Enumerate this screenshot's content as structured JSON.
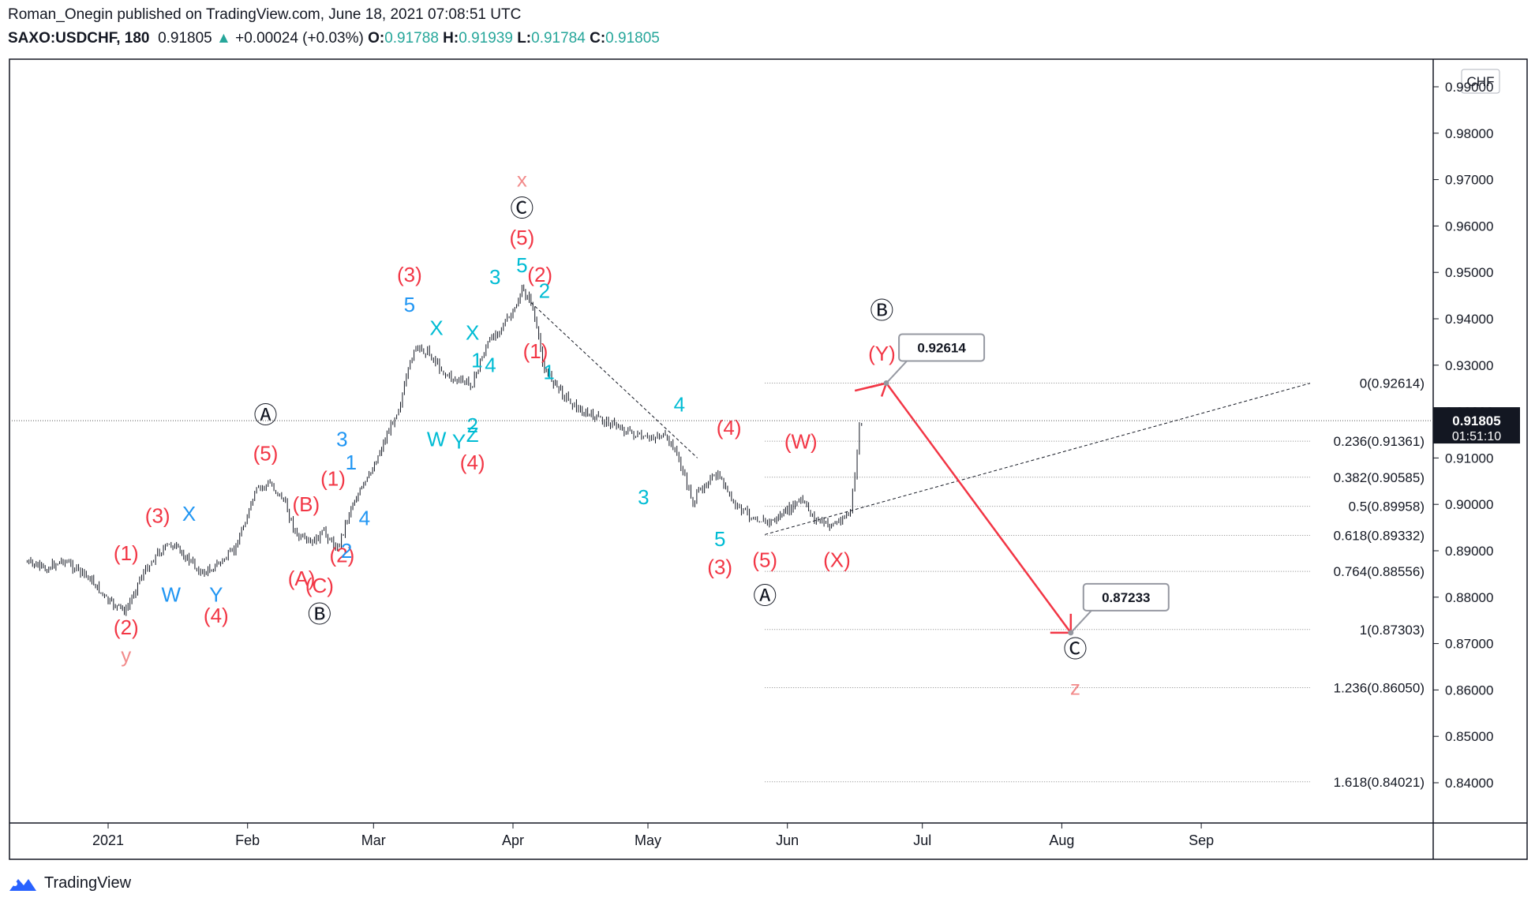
{
  "header": {
    "line1": "Roman_Onegin published on TradingView.com, June 18, 2021 07:08:51 UTC",
    "symbol": "SAXO:USDCHF, 180",
    "last": "0.91805",
    "arrow": "▲",
    "change": "+0.00024 (+0.03%)",
    "o_label": "O:",
    "o": "0.91788",
    "h_label": "H:",
    "h": "0.91939",
    "l_label": "L:",
    "l": "0.91784",
    "c_label": "C:",
    "c": "0.91805"
  },
  "footer": {
    "brand": "TradingView"
  },
  "chart_data": {
    "type": "candlestick",
    "currency": "CHF",
    "price_axis": {
      "ticks": [
        "0.99000",
        "0.98000",
        "0.97000",
        "0.96000",
        "0.95000",
        "0.94000",
        "0.93000",
        "0.92000",
        "0.91000",
        "0.90000",
        "0.89000",
        "0.88000",
        "0.87000",
        "0.86000",
        "0.85000",
        "0.84000"
      ],
      "range": [
        0.835,
        0.9985
      ]
    },
    "time_axis": {
      "labels": [
        "2021",
        "Feb",
        "Mar",
        "Apr",
        "May",
        "Jun",
        "Jul",
        "Aug",
        "Sep"
      ]
    },
    "current_price": {
      "value": "0.91805",
      "countdown": "01:51:10"
    },
    "price_path": [
      [
        "2020-12-14",
        0.8875
      ],
      [
        "2020-12-18",
        0.886
      ],
      [
        "2020-12-22",
        0.888
      ],
      [
        "2020-12-28",
        0.884
      ],
      [
        "2021-01-01",
        0.879
      ],
      [
        "2021-01-05",
        0.877
      ],
      [
        "2021-01-08",
        0.884
      ],
      [
        "2021-01-12",
        0.8895
      ],
      [
        "2021-01-15",
        0.8915
      ],
      [
        "2021-01-19",
        0.888
      ],
      [
        "2021-01-22",
        0.885
      ],
      [
        "2021-01-26",
        0.8875
      ],
      [
        "2021-01-29",
        0.89
      ],
      [
        "2021-02-03",
        0.903
      ],
      [
        "2021-02-06",
        0.9045
      ],
      [
        "2021-02-09",
        0.901
      ],
      [
        "2021-02-12",
        0.893
      ],
      [
        "2021-02-15",
        0.8915
      ],
      [
        "2021-02-18",
        0.894
      ],
      [
        "2021-02-21",
        0.8905
      ],
      [
        "2021-02-24",
        0.8995
      ],
      [
        "2021-02-28",
        0.906
      ],
      [
        "2021-03-04",
        0.915
      ],
      [
        "2021-03-07",
        0.922
      ],
      [
        "2021-03-10",
        0.9335
      ],
      [
        "2021-03-13",
        0.933
      ],
      [
        "2021-03-17",
        0.928
      ],
      [
        "2021-03-20",
        0.9265
      ],
      [
        "2021-03-23",
        0.926
      ],
      [
        "2021-03-26",
        0.934
      ],
      [
        "2021-03-29",
        0.938
      ],
      [
        "2021-04-01",
        0.941
      ],
      [
        "2021-04-03",
        0.946
      ],
      [
        "2021-04-05",
        0.944
      ],
      [
        "2021-04-08",
        0.929
      ],
      [
        "2021-04-12",
        0.924
      ],
      [
        "2021-04-16",
        0.92
      ],
      [
        "2021-04-20",
        0.9185
      ],
      [
        "2021-04-24",
        0.917
      ],
      [
        "2021-04-27",
        0.9155
      ],
      [
        "2021-04-30",
        0.914
      ],
      [
        "2021-05-04",
        0.915
      ],
      [
        "2021-05-07",
        0.912
      ],
      [
        "2021-05-11",
        0.9005
      ],
      [
        "2021-05-14",
        0.905
      ],
      [
        "2021-05-17",
        0.906
      ],
      [
        "2021-05-20",
        0.9
      ],
      [
        "2021-05-24",
        0.8975
      ],
      [
        "2021-05-28",
        0.896
      ],
      [
        "2021-06-01",
        0.8985
      ],
      [
        "2021-06-04",
        0.901
      ],
      [
        "2021-06-07",
        0.897
      ],
      [
        "2021-06-10",
        0.8955
      ],
      [
        "2021-06-12",
        0.896
      ],
      [
        "2021-06-15",
        0.8985
      ],
      [
        "2021-06-16",
        0.906
      ],
      [
        "2021-06-17",
        0.917
      ],
      [
        "2021-06-18",
        0.9181
      ]
    ],
    "fibonacci": [
      {
        "level": "0",
        "price": "0.92614"
      },
      {
        "level": "0.236",
        "price": "0.91361"
      },
      {
        "level": "0.382",
        "price": "0.90585"
      },
      {
        "level": "0.5",
        "price": "0.89958"
      },
      {
        "level": "0.618",
        "price": "0.89332"
      },
      {
        "level": "0.764",
        "price": "0.88556"
      },
      {
        "level": "1",
        "price": "0.87303"
      },
      {
        "level": "1.236",
        "price": "0.86050"
      },
      {
        "level": "1.618",
        "price": "0.84021"
      }
    ],
    "projection": [
      {
        "date": "2021-06-23",
        "price": 0.92614,
        "callout": "0.92614"
      },
      {
        "date": "2021-08-03",
        "price": 0.87233,
        "callout": "0.87233"
      }
    ],
    "colors": {
      "red": "#f23645",
      "blue": "#2196f3",
      "cyan": "#00bcd4",
      "pink": "#f28b8b",
      "black": "#131722"
    },
    "wave_labels": [
      {
        "text": "(2)",
        "date": "2021-01-05",
        "price": 0.872,
        "color": "red"
      },
      {
        "text": "y",
        "date": "2021-01-05",
        "price": 0.866,
        "color": "pink"
      },
      {
        "text": "(1)",
        "date": "2021-01-05",
        "price": 0.888,
        "color": "red"
      },
      {
        "text": "(3)",
        "date": "2021-01-12",
        "price": 0.896,
        "color": "red"
      },
      {
        "text": "X",
        "date": "2021-01-19",
        "price": 0.8965,
        "color": "blue"
      },
      {
        "text": "W",
        "date": "2021-01-15",
        "price": 0.879,
        "color": "blue"
      },
      {
        "text": "Y",
        "date": "2021-01-25",
        "price": 0.879,
        "color": "blue"
      },
      {
        "text": "(4)",
        "date": "2021-01-25",
        "price": 0.8745,
        "color": "red"
      },
      {
        "text": "Ⓐ",
        "date": "2021-02-05",
        "price": 0.9175,
        "color": "black"
      },
      {
        "text": "(5)",
        "date": "2021-02-05",
        "price": 0.9095,
        "color": "red"
      },
      {
        "text": "(B)",
        "date": "2021-02-14",
        "price": 0.8985,
        "color": "red"
      },
      {
        "text": "(A)",
        "date": "2021-02-13",
        "price": 0.8825,
        "color": "red"
      },
      {
        "text": "(C)",
        "date": "2021-02-17",
        "price": 0.881,
        "color": "red"
      },
      {
        "text": "Ⓑ",
        "date": "2021-02-17",
        "price": 0.8745,
        "color": "black"
      },
      {
        "text": "(1)",
        "date": "2021-02-20",
        "price": 0.904,
        "color": "red"
      },
      {
        "text": "(2)",
        "date": "2021-02-22",
        "price": 0.8875,
        "color": "red"
      },
      {
        "text": "2",
        "date": "2021-02-23",
        "price": 0.8885,
        "color": "blue"
      },
      {
        "text": "1",
        "date": "2021-02-24",
        "price": 0.9075,
        "color": "blue"
      },
      {
        "text": "3",
        "date": "2021-02-22",
        "price": 0.9125,
        "color": "blue"
      },
      {
        "text": "4",
        "date": "2021-02-27",
        "price": 0.8955,
        "color": "blue"
      },
      {
        "text": "(3)",
        "date": "2021-03-09",
        "price": 0.948,
        "color": "red"
      },
      {
        "text": "5",
        "date": "2021-03-09",
        "price": 0.9415,
        "color": "blue"
      },
      {
        "text": "X",
        "date": "2021-03-15",
        "price": 0.9365,
        "color": "cyan"
      },
      {
        "text": "X",
        "date": "2021-03-23",
        "price": 0.9355,
        "color": "cyan"
      },
      {
        "text": "W",
        "date": "2021-03-15",
        "price": 0.9125,
        "color": "cyan"
      },
      {
        "text": "Y",
        "date": "2021-03-20",
        "price": 0.912,
        "color": "cyan"
      },
      {
        "text": "Z",
        "date": "2021-03-23",
        "price": 0.9135,
        "color": "cyan"
      },
      {
        "text": "2",
        "date": "2021-03-23",
        "price": 0.9155,
        "color": "cyan"
      },
      {
        "text": "1",
        "date": "2021-03-24",
        "price": 0.9295,
        "color": "cyan"
      },
      {
        "text": "4",
        "date": "2021-03-27",
        "price": 0.9285,
        "color": "cyan"
      },
      {
        "text": "(4)",
        "date": "2021-03-23",
        "price": 0.9075,
        "color": "red"
      },
      {
        "text": "3",
        "date": "2021-03-28",
        "price": 0.9475,
        "color": "cyan"
      },
      {
        "text": "x",
        "date": "2021-04-03",
        "price": 0.9685,
        "color": "pink"
      },
      {
        "text": "Ⓒ",
        "date": "2021-04-03",
        "price": 0.962,
        "color": "black"
      },
      {
        "text": "(5)",
        "date": "2021-04-03",
        "price": 0.956,
        "color": "red"
      },
      {
        "text": "5",
        "date": "2021-04-03",
        "price": 0.95,
        "color": "cyan"
      },
      {
        "text": "(2)",
        "date": "2021-04-07",
        "price": 0.948,
        "color": "red"
      },
      {
        "text": "2",
        "date": "2021-04-08",
        "price": 0.9445,
        "color": "cyan"
      },
      {
        "text": "(1)",
        "date": "2021-04-06",
        "price": 0.9315,
        "color": "red"
      },
      {
        "text": "1",
        "date": "2021-04-09",
        "price": 0.927,
        "color": "cyan"
      },
      {
        "text": "4",
        "date": "2021-05-08",
        "price": 0.92,
        "color": "cyan"
      },
      {
        "text": "(4)",
        "date": "2021-05-19",
        "price": 0.915,
        "color": "red"
      },
      {
        "text": "3",
        "date": "2021-04-30",
        "price": 0.9,
        "color": "cyan"
      },
      {
        "text": "5",
        "date": "2021-05-17",
        "price": 0.891,
        "color": "cyan"
      },
      {
        "text": "(3)",
        "date": "2021-05-17",
        "price": 0.885,
        "color": "red"
      },
      {
        "text": "(5)",
        "date": "2021-05-27",
        "price": 0.8865,
        "color": "red"
      },
      {
        "text": "Ⓐ",
        "date": "2021-05-27",
        "price": 0.8785,
        "color": "black"
      },
      {
        "text": "(W)",
        "date": "2021-06-04",
        "price": 0.912,
        "color": "red"
      },
      {
        "text": "(X)",
        "date": "2021-06-12",
        "price": 0.8865,
        "color": "red"
      },
      {
        "text": "Ⓑ",
        "date": "2021-06-22",
        "price": 0.94,
        "color": "black"
      },
      {
        "text": "(Y)",
        "date": "2021-06-22",
        "price": 0.931,
        "color": "red"
      },
      {
        "text": "Ⓒ",
        "date": "2021-08-04",
        "price": 0.867,
        "color": "black"
      },
      {
        "text": "z",
        "date": "2021-08-04",
        "price": 0.859,
        "color": "pink"
      }
    ]
  }
}
